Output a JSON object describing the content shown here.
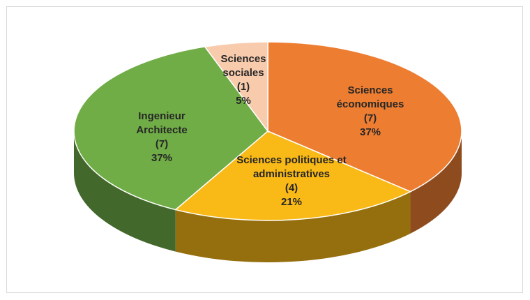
{
  "chart_data": {
    "type": "pie",
    "categories": [
      "Sciences économiques",
      "Sciences politiques et administratives",
      "Ingenieur Architecte",
      "Sciences sociales"
    ],
    "values": [
      7,
      4,
      7,
      1
    ],
    "value_labels": [
      "(7)",
      "(4)",
      "(7)",
      "(1)"
    ],
    "percentages": [
      37,
      21,
      37,
      5
    ],
    "percentage_labels": [
      "37%",
      "21%",
      "37%",
      "5%"
    ],
    "colors": [
      "#ed7d31",
      "#f9b916",
      "#70ad47",
      "#f8cbad"
    ]
  }
}
